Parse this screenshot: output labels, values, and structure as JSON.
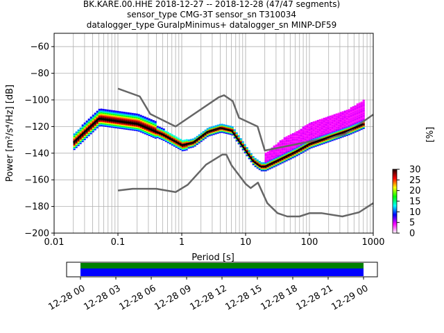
{
  "title_lines": [
    "BK.KARE.00.HHE   2018-12-27 -- 2018-12-28  (47/47 segments)",
    "sensor_type CMG-3T sensor_sn T310034",
    "datalogger_type GuralpMinimus+ datalogger_sn MINP-DF59"
  ],
  "colorbar": {
    "label": "[%]",
    "ticks": [
      "0",
      "5",
      "10",
      "15",
      "20",
      "25",
      "30"
    ],
    "range": [
      0,
      30
    ],
    "colormap": [
      "#ffffff",
      "#ff00ff",
      "#0000ff",
      "#00ffff",
      "#00ff00",
      "#ffff00",
      "#ff0000",
      "#200000"
    ]
  },
  "timeline": {
    "tick_labels": [
      "12-28 00",
      "12-28 03",
      "12-28 06",
      "12-28 09",
      "12-28 12",
      "12-28 15",
      "12-28 18",
      "12-28 21",
      "12-29 00"
    ],
    "coverage_colors": [
      "#008000",
      "#0000ff"
    ],
    "coverage_start_hour": 0,
    "coverage_end_hour": 24
  },
  "chart_data": {
    "type": "heatmap",
    "xlabel": "Period [s]",
    "ylabel": "Power [m²/s⁴/Hz] [dB]",
    "x_scale": "log",
    "xlim": [
      0.01,
      1000
    ],
    "ylim": [
      -200,
      -50
    ],
    "x_tick_labels": [
      "0.01",
      "0.1",
      "1",
      "10",
      "100",
      "1000"
    ],
    "y_tick_labels": [
      "−200",
      "−180",
      "−160",
      "−140",
      "−120",
      "−100",
      "−80",
      "−60"
    ],
    "grid": true,
    "noise_model_high": {
      "period": [
        0.1,
        0.22,
        0.32,
        0.8,
        3.8,
        4.6,
        6.3,
        7.9,
        15.4,
        20,
        354.8,
        1000
      ],
      "power": [
        -91.5,
        -97.4,
        -110.5,
        -120,
        -98,
        -96.5,
        -101,
        -113.5,
        -120,
        -138,
        -126,
        -111
      ]
    },
    "noise_model_low": {
      "period": [
        0.1,
        0.17,
        0.4,
        0.8,
        1.24,
        2.4,
        4.3,
        5,
        6,
        10,
        12,
        15.6,
        21.9,
        31.6,
        45,
        70,
        101,
        154,
        328,
        600,
        1000
      ],
      "power": [
        -168,
        -166.7,
        -166.7,
        -169.2,
        -163.7,
        -148.6,
        -141.1,
        -141.1,
        -149,
        -163,
        -166.2,
        -162.1,
        -177.5,
        -185,
        -187.5,
        -187.5,
        -185,
        -185,
        -187.5,
        -184.4,
        -177.5
      ]
    },
    "mode_curve": {
      "period": [
        0.02,
        0.03,
        0.05,
        0.1,
        0.2,
        0.5,
        1,
        1.5,
        2.5,
        4,
        6,
        9,
        13,
        17,
        20,
        30,
        60,
        100,
        200,
        400,
        700
      ],
      "power": [
        -132,
        -124,
        -114,
        -116,
        -118,
        -126,
        -134,
        -132,
        -124,
        -121,
        -123,
        -135,
        -146,
        -150,
        -150,
        -146,
        -139,
        -133,
        -128,
        -123,
        -118
      ]
    },
    "pdf_high_tail": {
      "period": [
        20,
        40,
        70,
        100,
        200,
        400,
        700
      ],
      "power": [
        -140,
        -128,
        -122,
        -117,
        -112,
        -107,
        -100
      ]
    }
  }
}
